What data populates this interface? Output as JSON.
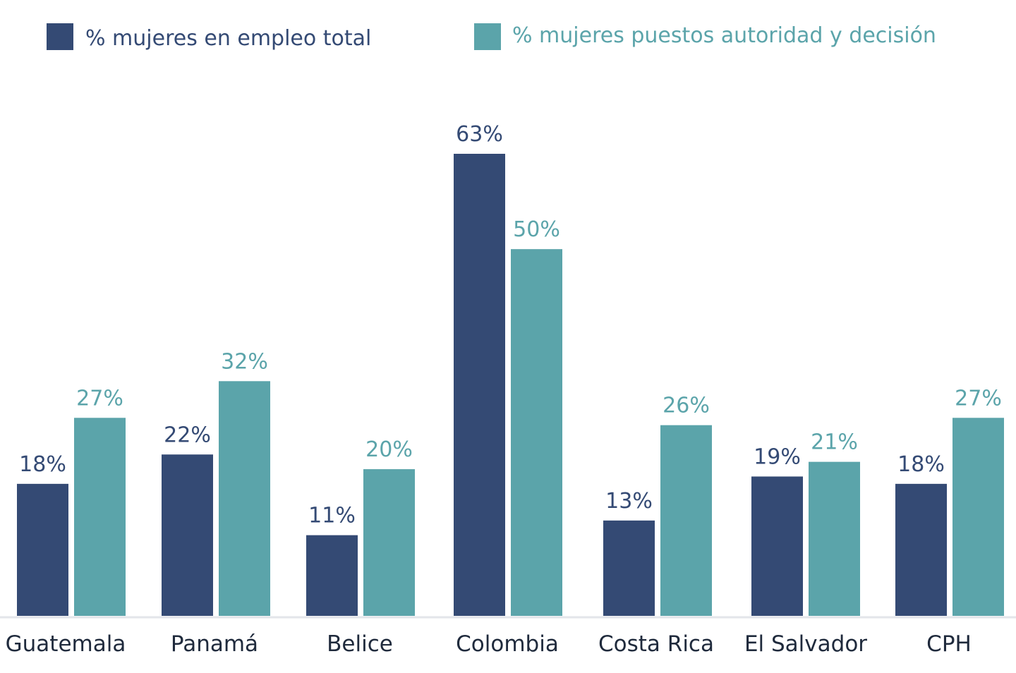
{
  "chart_data": {
    "type": "bar",
    "title": "",
    "xlabel": "",
    "ylabel": "",
    "ylim": [
      0,
      63
    ],
    "grid": false,
    "legend_position": "top",
    "categories": [
      "Guatemala",
      "Panamá",
      "Belice",
      "Colombia",
      "Costa Rica",
      "El Salvador",
      "CPH"
    ],
    "series": [
      {
        "name": "% mujeres en empleo total",
        "color": "#344a74",
        "values": [
          18,
          22,
          11,
          63,
          13,
          19,
          18
        ],
        "labels": [
          "18%",
          "22%",
          "11%",
          "63%",
          "13%",
          "19%",
          "18%"
        ]
      },
      {
        "name": "% mujeres puestos autoridad y decisión",
        "color": "#5ba4aa",
        "values": [
          27,
          32,
          20,
          50,
          26,
          21,
          27
        ],
        "labels": [
          "27%",
          "32%",
          "20%",
          "50%",
          "26%",
          "21%",
          "27%"
        ]
      }
    ]
  }
}
